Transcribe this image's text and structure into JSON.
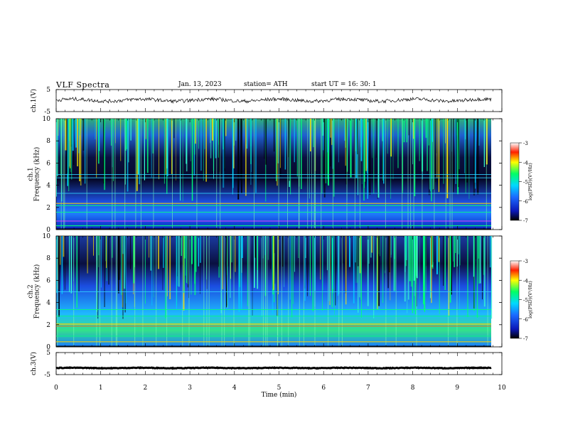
{
  "header": {
    "title": "VLF  Spectra",
    "date": "Jan.  13,  2023",
    "station": "station= ATH",
    "start": "start  UT  =    16: 30: 1"
  },
  "chart_data": [
    {
      "type": "line",
      "panel": "ch1-waveform",
      "ylabel": "ch.1(V)",
      "yticks": [
        "5",
        "-5"
      ],
      "ylim": [
        -5,
        5
      ],
      "series": [
        {
          "values": [
            0.2,
            0.0
          ]
        }
      ]
    },
    {
      "type": "heatmap",
      "panel": "ch1-spectrogram",
      "ylabel": "ch.1\nFrequency  (kHz)",
      "yticks": [
        "10",
        "8",
        "6",
        "4",
        "2",
        "0"
      ],
      "ylim": [
        0,
        10
      ],
      "colorbar": {
        "label": "log(PSD)(V²/Hz)",
        "ticks": [
          "-3",
          "-4",
          "-5",
          "-6",
          "-7"
        ],
        "range": [
          -7,
          -3
        ]
      }
    },
    {
      "type": "heatmap",
      "panel": "ch2-spectrogram",
      "ylabel": "ch.2\nFrequency  (kHz)",
      "yticks": [
        "10",
        "8",
        "6",
        "4",
        "2",
        "0"
      ],
      "ylim": [
        0,
        10
      ],
      "colorbar": {
        "label": "log(PSD)(V²/Hz)",
        "ticks": [
          "-3",
          "-4",
          "-5",
          "-6",
          "-7"
        ],
        "range": [
          -7,
          -3
        ]
      }
    },
    {
      "type": "line",
      "panel": "ch3-waveform",
      "ylabel": "ch.3(V)",
      "yticks": [
        "5",
        "-5"
      ],
      "ylim": [
        -5,
        5
      ],
      "series": [
        {
          "values": [
            -2.0,
            -2.0
          ]
        }
      ]
    }
  ],
  "xaxis": {
    "label": "Time  (min)",
    "ticks": [
      "0",
      "1",
      "2",
      "3",
      "4",
      "5",
      "6",
      "7",
      "8",
      "9",
      "10"
    ],
    "xlim": [
      0,
      10
    ]
  },
  "colors": {
    "low": "#000000",
    "mid": "#1b3cff",
    "high": "#ff0000"
  }
}
